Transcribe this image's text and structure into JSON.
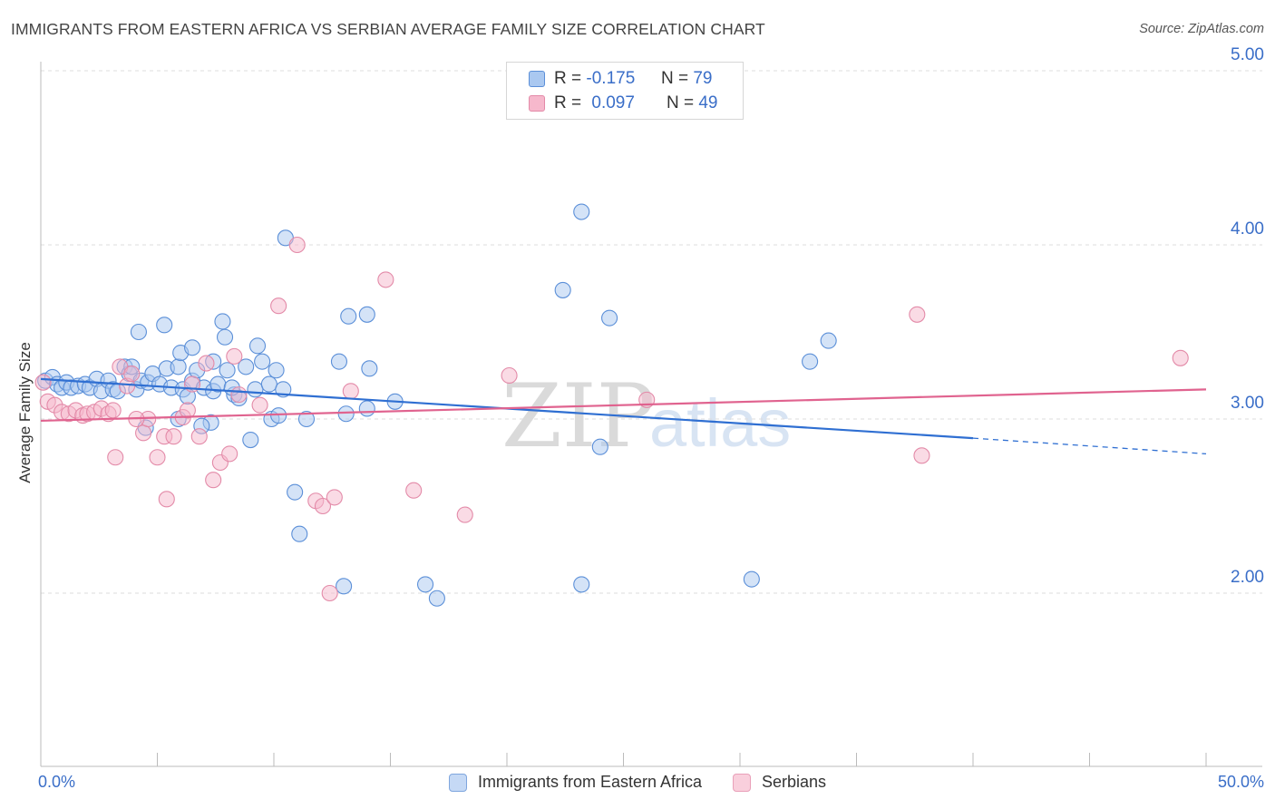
{
  "title": "IMMIGRANTS FROM EASTERN AFRICA VS SERBIAN AVERAGE FAMILY SIZE CORRELATION CHART",
  "source": "Source: ZipAtlas.com",
  "watermark": {
    "zip": "ZIP",
    "atlas": "atlas"
  },
  "colors": {
    "blue_fill": "#aac8f0",
    "blue_stroke": "#5b8fd8",
    "blue_line": "#2f6fd2",
    "pink_fill": "#f6b8cc",
    "pink_stroke": "#e38aa8",
    "pink_line": "#e0638f",
    "axis_text": "#3a6ec8",
    "grid": "#dcdcdc"
  },
  "legend": {
    "r_label": "R =",
    "n_label": "N =",
    "rows": [
      {
        "r": "-0.175",
        "n": "79"
      },
      {
        "r": "0.097",
        "n": "49"
      }
    ]
  },
  "chart_data": {
    "type": "scatter",
    "title": "IMMIGRANTS FROM EASTERN AFRICA VS SERBIAN AVERAGE FAMILY SIZE CORRELATION CHART",
    "xlabel": "",
    "ylabel": "Average Family Size",
    "xlim": [
      0,
      50
    ],
    "ylim": [
      1.0,
      5.15
    ],
    "x_tick_labels": [
      "0.0%",
      "50.0%"
    ],
    "y_ticks": [
      2.0,
      3.0,
      4.0,
      5.0
    ],
    "y_tick_labels": [
      "2.00",
      "3.00",
      "4.00",
      "5.00"
    ],
    "grid": "horizontal dashed",
    "legend_position": "bottom",
    "series": [
      {
        "name": "Immigrants from Eastern Africa",
        "color": "blue",
        "r": -0.175,
        "n": 79,
        "trend": {
          "x": [
            0,
            40,
            50
          ],
          "y": [
            3.23,
            2.89,
            2.8
          ],
          "solid_until": 40
        },
        "points": [
          [
            0.2,
            3.22
          ],
          [
            0.5,
            3.24
          ],
          [
            0.7,
            3.2
          ],
          [
            0.9,
            3.18
          ],
          [
            1.1,
            3.21
          ],
          [
            1.3,
            3.18
          ],
          [
            1.6,
            3.19
          ],
          [
            1.9,
            3.2
          ],
          [
            2.1,
            3.18
          ],
          [
            2.4,
            3.23
          ],
          [
            2.6,
            3.16
          ],
          [
            2.9,
            3.22
          ],
          [
            3.1,
            3.17
          ],
          [
            3.3,
            3.16
          ],
          [
            3.6,
            3.3
          ],
          [
            3.8,
            3.26
          ],
          [
            4.1,
            3.17
          ],
          [
            4.3,
            3.22
          ],
          [
            4.6,
            3.21
          ],
          [
            4.8,
            3.26
          ],
          [
            5.1,
            3.2
          ],
          [
            5.4,
            3.29
          ],
          [
            5.6,
            3.18
          ],
          [
            5.9,
            3.3
          ],
          [
            6.1,
            3.17
          ],
          [
            6.3,
            3.13
          ],
          [
            6.5,
            3.22
          ],
          [
            6.7,
            3.28
          ],
          [
            7.0,
            3.18
          ],
          [
            7.4,
            3.16
          ],
          [
            7.6,
            3.2
          ],
          [
            8.0,
            3.28
          ],
          [
            8.3,
            3.14
          ],
          [
            8.5,
            3.12
          ],
          [
            8.8,
            3.3
          ],
          [
            9.2,
            3.17
          ],
          [
            9.5,
            3.33
          ],
          [
            9.8,
            3.2
          ],
          [
            10.1,
            3.28
          ],
          [
            10.4,
            3.17
          ],
          [
            4.2,
            3.5
          ],
          [
            5.3,
            3.54
          ],
          [
            6.0,
            3.38
          ],
          [
            6.5,
            3.41
          ],
          [
            7.4,
            3.33
          ],
          [
            7.8,
            3.56
          ],
          [
            7.9,
            3.47
          ],
          [
            9.3,
            3.42
          ],
          [
            8.2,
            3.18
          ],
          [
            7.3,
            2.98
          ],
          [
            6.9,
            2.96
          ],
          [
            5.9,
            3.0
          ],
          [
            4.5,
            2.95
          ],
          [
            9.9,
            3.0
          ],
          [
            10.2,
            3.02
          ],
          [
            11.4,
            3.0
          ],
          [
            9.0,
            2.88
          ],
          [
            10.5,
            4.04
          ],
          [
            12.8,
            3.33
          ],
          [
            13.1,
            3.03
          ],
          [
            14.1,
            3.29
          ],
          [
            14.0,
            3.06
          ],
          [
            15.2,
            3.1
          ],
          [
            13.2,
            3.59
          ],
          [
            14.0,
            3.6
          ],
          [
            10.9,
            2.58
          ],
          [
            11.1,
            2.34
          ],
          [
            13.0,
            2.04
          ],
          [
            16.5,
            2.05
          ],
          [
            17.0,
            1.97
          ],
          [
            23.2,
            2.05
          ],
          [
            23.2,
            4.19
          ],
          [
            22.4,
            3.74
          ],
          [
            24.4,
            3.58
          ],
          [
            24.0,
            2.84
          ],
          [
            33.8,
            3.45
          ],
          [
            33.0,
            3.33
          ],
          [
            30.5,
            2.08
          ],
          [
            3.9,
            3.3
          ]
        ]
      },
      {
        "name": "Serbians",
        "color": "pink",
        "r": 0.097,
        "n": 49,
        "trend": {
          "x": [
            0,
            50
          ],
          "y": [
            2.99,
            3.17
          ]
        },
        "points": [
          [
            0.1,
            3.21
          ],
          [
            0.3,
            3.1
          ],
          [
            0.6,
            3.08
          ],
          [
            0.9,
            3.04
          ],
          [
            1.2,
            3.03
          ],
          [
            1.5,
            3.05
          ],
          [
            1.8,
            3.02
          ],
          [
            2.0,
            3.03
          ],
          [
            2.3,
            3.04
          ],
          [
            2.6,
            3.06
          ],
          [
            2.9,
            3.03
          ],
          [
            3.1,
            3.05
          ],
          [
            3.4,
            3.3
          ],
          [
            3.7,
            3.19
          ],
          [
            3.9,
            3.26
          ],
          [
            4.4,
            2.92
          ],
          [
            4.6,
            3.0
          ],
          [
            5.0,
            2.78
          ],
          [
            5.3,
            2.9
          ],
          [
            5.7,
            2.9
          ],
          [
            6.1,
            3.01
          ],
          [
            6.3,
            3.05
          ],
          [
            6.5,
            3.2
          ],
          [
            6.8,
            2.9
          ],
          [
            7.1,
            3.32
          ],
          [
            7.4,
            2.65
          ],
          [
            7.7,
            2.75
          ],
          [
            8.1,
            2.8
          ],
          [
            8.5,
            3.14
          ],
          [
            8.3,
            3.36
          ],
          [
            9.4,
            3.08
          ],
          [
            10.2,
            3.65
          ],
          [
            11.0,
            4.0
          ],
          [
            11.8,
            2.53
          ],
          [
            12.1,
            2.5
          ],
          [
            12.6,
            2.55
          ],
          [
            12.4,
            2.0
          ],
          [
            13.3,
            3.16
          ],
          [
            14.8,
            3.8
          ],
          [
            16.0,
            2.59
          ],
          [
            18.2,
            2.45
          ],
          [
            20.1,
            3.25
          ],
          [
            3.2,
            2.78
          ],
          [
            5.4,
            2.54
          ],
          [
            26.0,
            3.11
          ],
          [
            37.6,
            3.6
          ],
          [
            37.8,
            2.79
          ],
          [
            48.9,
            3.35
          ],
          [
            4.1,
            3.0
          ]
        ]
      }
    ]
  },
  "x_axis": {
    "min_label": "0.0%",
    "max_label": "50.0%"
  }
}
